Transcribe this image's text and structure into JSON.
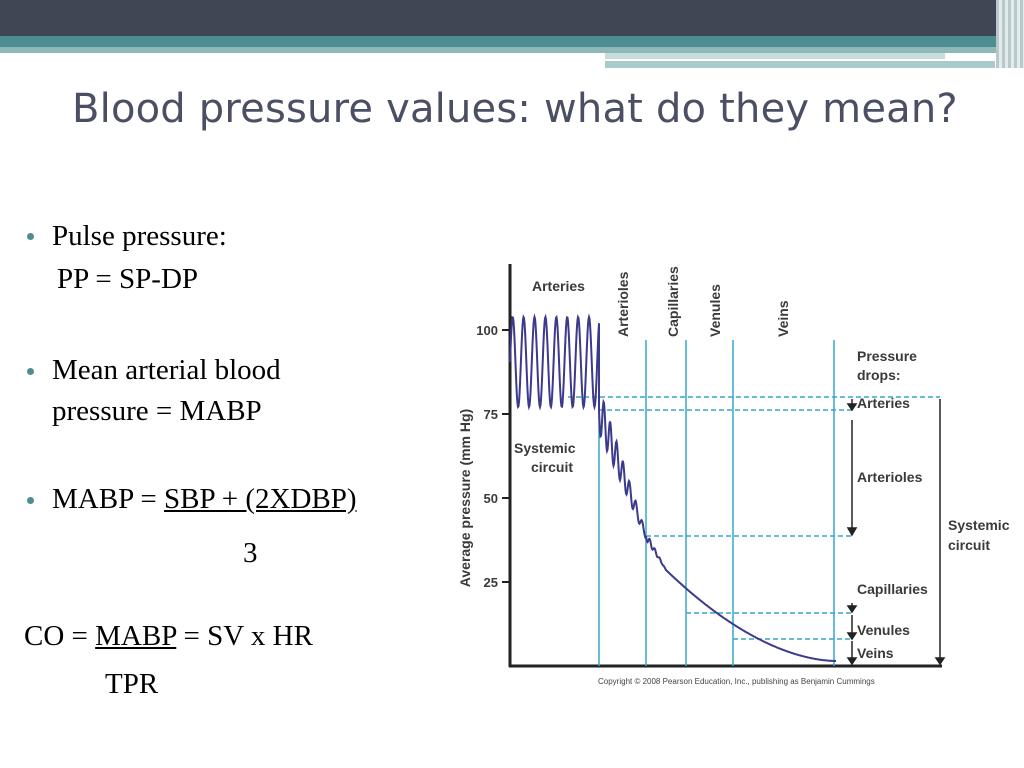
{
  "slide": {
    "title": "Blood pressure values: what do they mean?",
    "bullets": [
      {
        "label": "Pulse pressure:",
        "formula": "PP = SP-DP"
      },
      {
        "label_line1": "Mean arterial blood",
        "label_line2": "pressure = MABP"
      },
      {
        "prefix": "MABP = ",
        "numerator": "SBP + (2XDBP)",
        "denominator": "3"
      }
    ],
    "co_formula": {
      "prefix": "CO = ",
      "numerator": "MABP",
      "suffix": " = SV x HR",
      "denominator": "TPR"
    }
  },
  "figure": {
    "y_axis_label": "Average pressure (mm Hg)",
    "y_ticks": [
      "100",
      "75",
      "50",
      "25"
    ],
    "vessel_labels": [
      "Arteries",
      "Arterioles",
      "Capillaries",
      "Venules",
      "Veins"
    ],
    "inside_labels": {
      "line1": "Systemic",
      "line2": "circuit"
    },
    "pressure_drops_title": {
      "line1": "Pressure",
      "line2": "drops:"
    },
    "drop_labels": [
      "Arteries",
      "Arterioles",
      "Capillaries",
      "Venules",
      "Veins"
    ],
    "systemic_labels": {
      "line1": "Systemic",
      "line2": "circuit"
    },
    "copyright": "Copyright © 2008 Pearson Education, Inc., publishing as Benjamin Cummings",
    "colors": {
      "curve": "#3b3a8c",
      "guides": "#36a9c9"
    }
  }
}
